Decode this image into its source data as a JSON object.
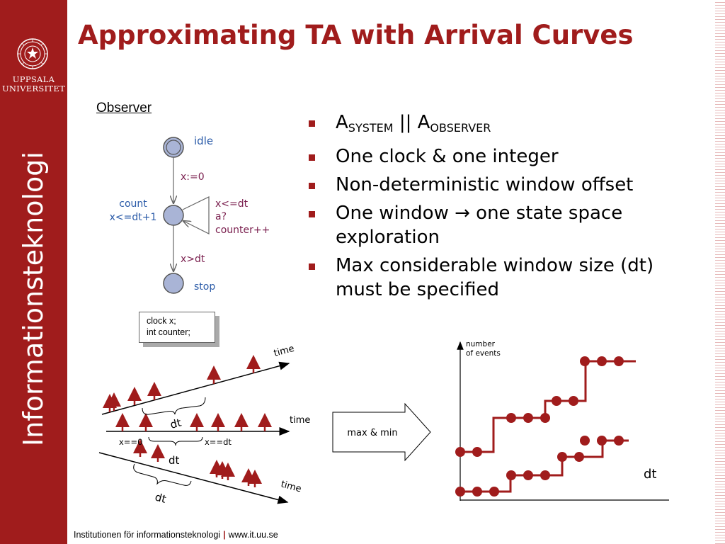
{
  "sidebar": {
    "university_line1": "UPPSALA",
    "university_line2": "UNIVERSITET",
    "vertical_label": "Informationsteknologi"
  },
  "slide": {
    "title": "Approximating TA with Arrival Curves"
  },
  "observer": {
    "heading": "Observer",
    "locations": {
      "idle": "idle",
      "count": "count",
      "count_invariant": "x<=dt+1",
      "stop": "stop"
    },
    "edges": {
      "reset": "x:=0",
      "self_guard": "x<=dt",
      "self_sync": "a?",
      "self_update": "counter++",
      "exit_guard": "x>dt"
    },
    "declarations": {
      "line1": "clock x;",
      "line2": "int counter;"
    }
  },
  "bullets": [
    {
      "main": "A",
      "sub": "SYSTEM",
      "mid": " || A",
      "sub2": "OBSERVER"
    },
    {
      "text": "One clock & one integer"
    },
    {
      "text": "Non-deterministic window offset"
    },
    {
      "text": "One window → one state space exploration"
    },
    {
      "text": "Max considerable window size (dt) must be specified"
    }
  ],
  "window_diagram": {
    "time_top": "time",
    "time_mid": "time",
    "time_bottom": "time",
    "dt_top": "dt",
    "dt_mid": "dt",
    "dt_bottom": "dt",
    "x_start": "x==0",
    "x_end": "x==dt"
  },
  "arrow_label": "max & min",
  "curves": {
    "ylabel_line1": "number",
    "ylabel_line2": "of events",
    "xlabel": "dt",
    "color": "#a01c1c"
  },
  "footer": {
    "institution": "Institutionen för informationsteknologi",
    "separator": "|",
    "url": "www.it.uu.se"
  },
  "colors": {
    "brand": "#a01c1c",
    "state_fill": "#a9b4d6",
    "location_text": "#2b5ba8",
    "edge_text": "#7a1f4e"
  }
}
